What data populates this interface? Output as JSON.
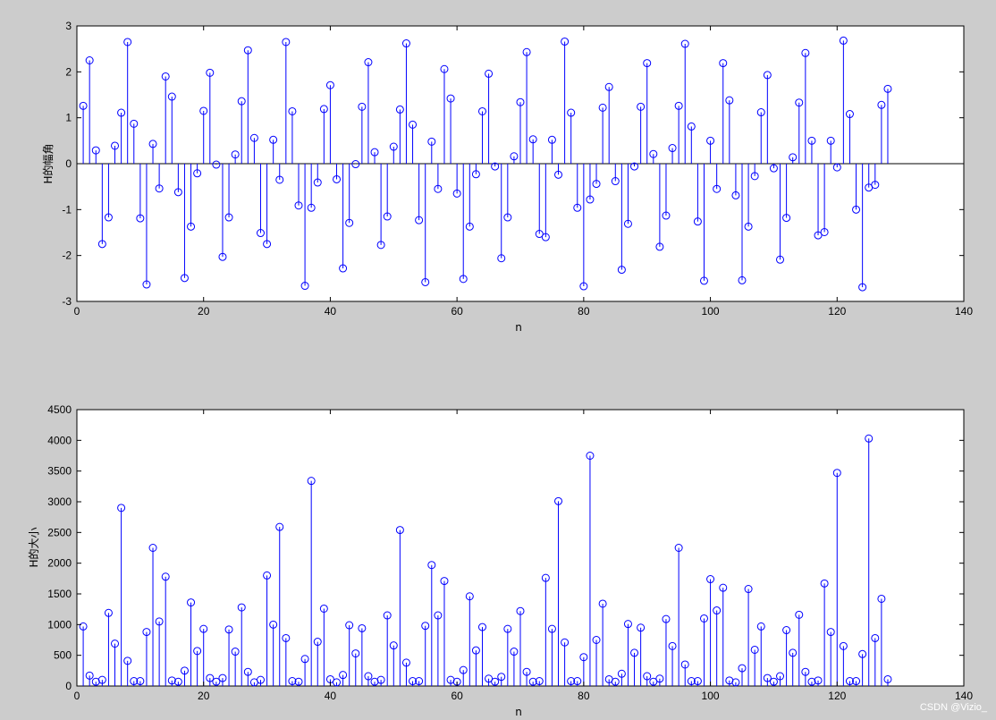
{
  "figure": {
    "background": "#cccccc",
    "stem_color": "#0000ff",
    "axes_background": "#ffffff"
  },
  "watermark": "CSDN @Vizio_",
  "chart_data": [
    {
      "type": "stem",
      "title": "",
      "xlabel": "n",
      "ylabel": "H的幅角",
      "xlim": [
        0,
        140
      ],
      "ylim": [
        -3,
        3
      ],
      "xticks": [
        0,
        20,
        40,
        60,
        80,
        100,
        120,
        140
      ],
      "yticks": [
        -3,
        -2,
        -1,
        0,
        1,
        2,
        3
      ],
      "baseline": 0,
      "grid": false,
      "x": [
        1,
        2,
        3,
        4,
        5,
        6,
        7,
        8,
        9,
        10,
        11,
        12,
        13,
        14,
        15,
        16,
        17,
        18,
        19,
        20,
        21,
        22,
        23,
        24,
        25,
        26,
        27,
        28,
        29,
        30,
        31,
        32,
        33,
        34,
        35,
        36,
        37,
        38,
        39,
        40,
        41,
        42,
        43,
        44,
        45,
        46,
        47,
        48,
        49,
        50,
        51,
        52,
        53,
        54,
        55,
        56,
        57,
        58,
        59,
        60,
        61,
        62,
        63,
        64,
        65,
        66,
        67,
        68,
        69,
        70,
        71,
        72,
        73,
        74,
        75,
        76,
        77,
        78,
        79,
        80,
        81,
        82,
        83,
        84,
        85,
        86,
        87,
        88,
        89,
        90,
        91,
        92,
        93,
        94,
        95,
        96,
        97,
        98,
        99,
        100,
        101,
        102,
        103,
        104,
        105,
        106,
        107,
        108,
        109,
        110,
        111,
        112,
        113,
        114,
        115,
        116,
        117,
        118,
        119,
        120,
        121,
        122,
        123,
        124,
        125,
        126,
        127,
        128
      ],
      "values": [
        1.26,
        2.25,
        0.29,
        -1.75,
        -1.17,
        0.39,
        1.11,
        2.65,
        0.87,
        -1.19,
        -2.63,
        0.43,
        -0.54,
        1.9,
        1.46,
        -0.62,
        -2.49,
        -1.37,
        -0.21,
        1.15,
        1.98,
        -0.02,
        -2.03,
        -1.17,
        0.2,
        1.36,
        2.47,
        0.56,
        -1.51,
        -1.75,
        0.52,
        -0.35,
        2.65,
        1.14,
        -0.91,
        -2.66,
        -0.96,
        -0.41,
        1.19,
        1.71,
        -0.34,
        -2.28,
        -1.29,
        -0.01,
        1.24,
        2.21,
        0.25,
        -1.77,
        -1.15,
        0.37,
        1.18,
        2.62,
        0.85,
        -1.23,
        -2.58,
        0.48,
        -0.55,
        2.06,
        1.42,
        -0.65,
        -2.51,
        -1.37,
        -0.23,
        1.14,
        1.96,
        -0.06,
        -2.06,
        -1.17,
        0.16,
        1.34,
        2.43,
        0.53,
        -1.53,
        -1.6,
        0.52,
        -0.24,
        2.66,
        1.11,
        -0.96,
        -2.67,
        -0.78,
        -0.44,
        1.22,
        1.67,
        -0.38,
        -2.31,
        -1.31,
        -0.06,
        1.24,
        2.19,
        0.21,
        -1.81,
        -1.13,
        0.34,
        1.26,
        2.61,
        0.81,
        -1.26,
        -2.55,
        0.5,
        -0.55,
        2.19,
        1.38,
        -0.69,
        -2.54,
        -1.37,
        -0.27,
        1.12,
        1.93,
        -0.1,
        -2.09,
        -1.18,
        0.14,
        1.33,
        2.41,
        0.5,
        -1.56,
        -1.49,
        0.5,
        -0.08,
        2.68,
        1.08,
        -1.0,
        -2.69,
        -0.52,
        -0.46,
        1.28,
        1.63
      ]
    },
    {
      "type": "stem",
      "title": "",
      "xlabel": "n",
      "ylabel": "H的大小",
      "xlim": [
        0,
        140
      ],
      "ylim": [
        0,
        4500
      ],
      "xticks": [
        0,
        20,
        40,
        60,
        80,
        100,
        120,
        140
      ],
      "yticks": [
        0,
        500,
        1000,
        1500,
        2000,
        2500,
        3000,
        3500,
        4000,
        4500
      ],
      "baseline": 0,
      "grid": false,
      "x": [
        1,
        2,
        3,
        4,
        5,
        6,
        7,
        8,
        9,
        10,
        11,
        12,
        13,
        14,
        15,
        16,
        17,
        18,
        19,
        20,
        21,
        22,
        23,
        24,
        25,
        26,
        27,
        28,
        29,
        30,
        31,
        32,
        33,
        34,
        35,
        36,
        37,
        38,
        39,
        40,
        41,
        42,
        43,
        44,
        45,
        46,
        47,
        48,
        49,
        50,
        51,
        52,
        53,
        54,
        55,
        56,
        57,
        58,
        59,
        60,
        61,
        62,
        63,
        64,
        65,
        66,
        67,
        68,
        69,
        70,
        71,
        72,
        73,
        74,
        75,
        76,
        77,
        78,
        79,
        80,
        81,
        82,
        83,
        84,
        85,
        86,
        87,
        88,
        89,
        90,
        91,
        92,
        93,
        94,
        95,
        96,
        97,
        98,
        99,
        100,
        101,
        102,
        103,
        104,
        105,
        106,
        107,
        108,
        109,
        110,
        111,
        112,
        113,
        114,
        115,
        116,
        117,
        118,
        119,
        120,
        121,
        122,
        123,
        124,
        125,
        126,
        127,
        128
      ],
      "values": [
        970,
        170,
        70,
        100,
        1190,
        690,
        2900,
        410,
        80,
        80,
        880,
        2250,
        1050,
        1780,
        90,
        70,
        250,
        1360,
        570,
        930,
        130,
        70,
        130,
        920,
        560,
        1280,
        230,
        60,
        100,
        1800,
        1000,
        2590,
        780,
        80,
        70,
        440,
        3340,
        720,
        1260,
        110,
        60,
        180,
        990,
        530,
        940,
        160,
        70,
        100,
        1150,
        660,
        2540,
        380,
        80,
        80,
        980,
        1970,
        1150,
        1710,
        100,
        70,
        260,
        1460,
        580,
        960,
        120,
        70,
        150,
        930,
        560,
        1220,
        230,
        70,
        80,
        1760,
        930,
        3010,
        710,
        80,
        80,
        470,
        3750,
        750,
        1340,
        110,
        70,
        200,
        1010,
        540,
        950,
        160,
        70,
        120,
        1090,
        650,
        2250,
        350,
        80,
        80,
        1100,
        1740,
        1230,
        1600,
        90,
        60,
        290,
        1580,
        590,
        970,
        130,
        70,
        160,
        910,
        540,
        1160,
        230,
        70,
        90,
        1670,
        880,
        3470,
        650,
        80,
        80,
        520,
        4030,
        780,
        1420,
        110
      ]
    }
  ]
}
